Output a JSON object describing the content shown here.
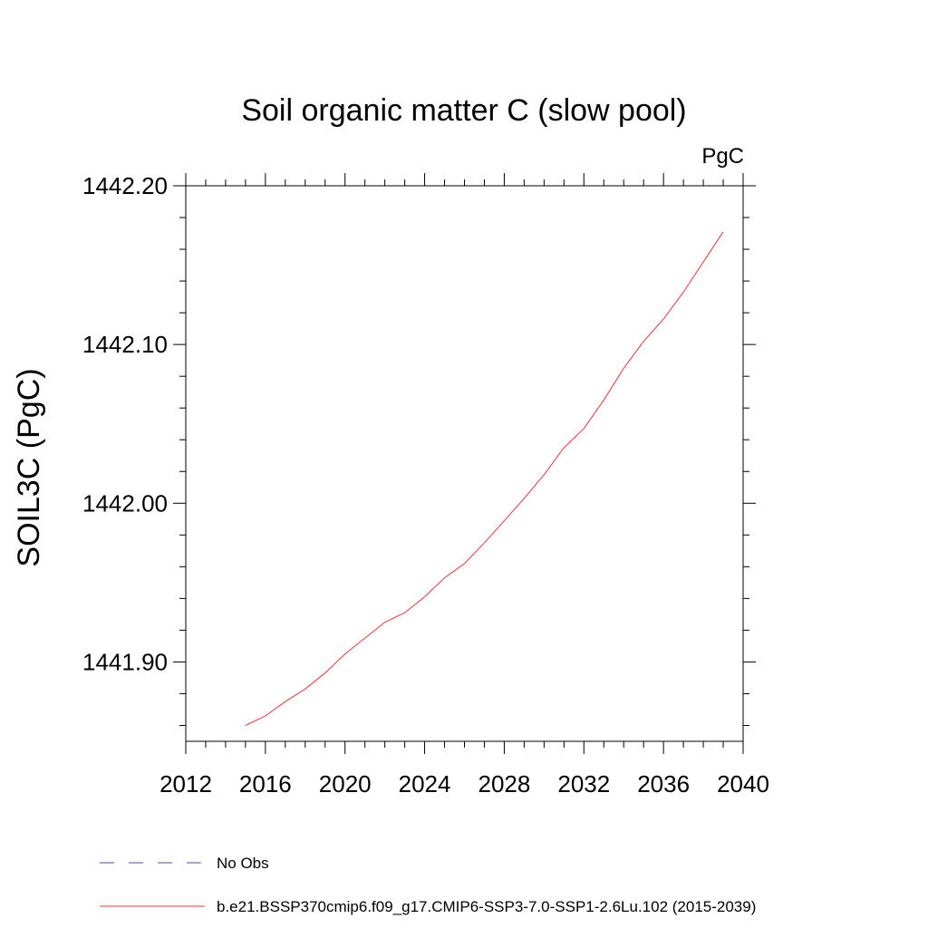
{
  "chart_data": {
    "type": "line",
    "title": "Soil organic matter C (slow pool)",
    "units": "PgC",
    "ylabel": "SOIL3C  (PgC)",
    "xlabel": "",
    "xlim": [
      2012,
      2040
    ],
    "ylim": [
      1441.85,
      1442.2
    ],
    "x_ticks": [
      2012,
      2016,
      2020,
      2024,
      2028,
      2032,
      2036,
      2040
    ],
    "x_tick_labels": [
      "2012",
      "2016",
      "2020",
      "2024",
      "2028",
      "2032",
      "2036",
      "2040"
    ],
    "x_minor_step": 1,
    "y_ticks": [
      1441.9,
      1442.0,
      1442.1,
      1442.2
    ],
    "y_tick_labels": [
      "1441.90",
      "1442.00",
      "1442.10",
      "1442.20"
    ],
    "y_minor_step": 0.02,
    "grid": false,
    "legend_position": "bottom",
    "legend": [
      {
        "label": "No Obs",
        "color": "#5a4a9a",
        "dash": "dashed"
      },
      {
        "label": "b.e21.BSSP370cmip6.f09_g17.CMIP6-SSP3-7.0-SSP1-2.6Lu.102 (2015-2039)",
        "color": "#e8333b",
        "dash": "solid"
      }
    ],
    "series": [
      {
        "name": "b.e21.BSSP370cmip6.f09_g17.CMIP6-SSP3-7.0-SSP1-2.6Lu.102 (2015-2039)",
        "color": "#e8333b",
        "x": [
          2015,
          2016,
          2017,
          2018,
          2019,
          2020,
          2021,
          2022,
          2023,
          2024,
          2025,
          2026,
          2027,
          2028,
          2029,
          2030,
          2031,
          2032,
          2033,
          2034,
          2035,
          2036,
          2037,
          2038,
          2039
        ],
        "y": [
          1441.86,
          1441.866,
          1441.875,
          1441.883,
          1441.893,
          1441.905,
          1441.915,
          1441.925,
          1441.931,
          1441.941,
          1441.953,
          1441.962,
          1441.975,
          1441.989,
          1442.003,
          1442.018,
          1442.035,
          1442.047,
          1442.065,
          1442.085,
          1442.102,
          1442.116,
          1442.133,
          1442.152,
          1442.171
        ]
      }
    ]
  }
}
